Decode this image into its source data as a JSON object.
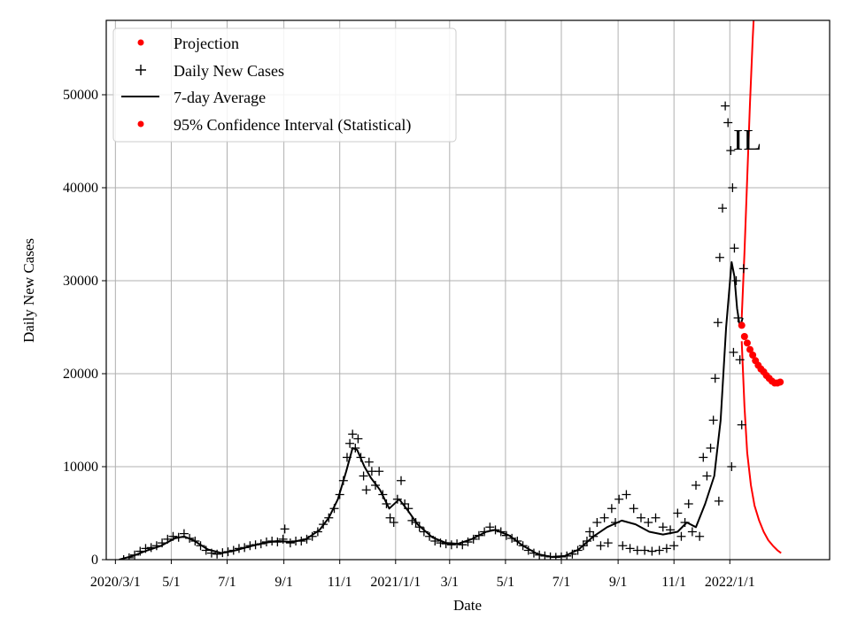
{
  "chart_data": {
    "type": "line",
    "xlabel": "Date",
    "ylabel": "Daily New Cases",
    "annotation": "IL",
    "xlim": [
      "2020-02-20",
      "2022-04-20"
    ],
    "ylim": [
      0,
      58000
    ],
    "grid": true,
    "legend_position": "top-left",
    "x_ticks": [
      {
        "date": "2020-03-01",
        "label": "2020/3/1"
      },
      {
        "date": "2020-05-01",
        "label": "5/1"
      },
      {
        "date": "2020-07-01",
        "label": "7/1"
      },
      {
        "date": "2020-09-01",
        "label": "9/1"
      },
      {
        "date": "2020-11-01",
        "label": "11/1"
      },
      {
        "date": "2021-01-01",
        "label": "2021/1/1"
      },
      {
        "date": "2021-03-01",
        "label": "3/1"
      },
      {
        "date": "2021-05-01",
        "label": "5/1"
      },
      {
        "date": "2021-07-01",
        "label": "7/1"
      },
      {
        "date": "2021-09-01",
        "label": "9/1"
      },
      {
        "date": "2021-11-01",
        "label": "11/1"
      },
      {
        "date": "2022-01-01",
        "label": "2022/1/1"
      }
    ],
    "y_ticks": [
      0,
      10000,
      20000,
      30000,
      40000,
      50000
    ],
    "colors": {
      "projection": "#ff0000",
      "cases": "#000000",
      "average": "#000000",
      "ci": "#ff0000"
    },
    "legend": [
      "Projection",
      "Daily New Cases",
      "7-day Average",
      "95% Confidence Interval (Statistical)"
    ],
    "series": [
      {
        "name": "Daily New Cases",
        "marker": "plus",
        "points": [
          [
            "2020-03-10",
            0
          ],
          [
            "2020-03-16",
            200
          ],
          [
            "2020-03-22",
            500
          ],
          [
            "2020-03-28",
            900
          ],
          [
            "2020-04-03",
            1200
          ],
          [
            "2020-04-09",
            1300
          ],
          [
            "2020-04-15",
            1500
          ],
          [
            "2020-04-21",
            1800
          ],
          [
            "2020-04-27",
            2200
          ],
          [
            "2020-05-03",
            2500
          ],
          [
            "2020-05-09",
            2400
          ],
          [
            "2020-05-15",
            2800
          ],
          [
            "2020-05-21",
            2300
          ],
          [
            "2020-05-27",
            2000
          ],
          [
            "2020-06-02",
            1500
          ],
          [
            "2020-06-08",
            1000
          ],
          [
            "2020-06-14",
            700
          ],
          [
            "2020-06-20",
            600
          ],
          [
            "2020-06-26",
            750
          ],
          [
            "2020-07-02",
            850
          ],
          [
            "2020-07-08",
            1000
          ],
          [
            "2020-07-14",
            1200
          ],
          [
            "2020-07-20",
            1300
          ],
          [
            "2020-07-26",
            1500
          ],
          [
            "2020-08-01",
            1600
          ],
          [
            "2020-08-07",
            1700
          ],
          [
            "2020-08-13",
            1900
          ],
          [
            "2020-08-19",
            2000
          ],
          [
            "2020-08-25",
            1900
          ],
          [
            "2020-08-31",
            2200
          ],
          [
            "2020-09-02",
            3300
          ],
          [
            "2020-09-08",
            1800
          ],
          [
            "2020-09-14",
            2000
          ],
          [
            "2020-09-20",
            2000
          ],
          [
            "2020-09-26",
            2200
          ],
          [
            "2020-10-02",
            2500
          ],
          [
            "2020-10-08",
            3000
          ],
          [
            "2020-10-14",
            3800
          ],
          [
            "2020-10-20",
            4500
          ],
          [
            "2020-10-26",
            5500
          ],
          [
            "2020-11-01",
            7000
          ],
          [
            "2020-11-05",
            8500
          ],
          [
            "2020-11-09",
            11000
          ],
          [
            "2020-11-12",
            12500
          ],
          [
            "2020-11-15",
            13500
          ],
          [
            "2020-11-18",
            12000
          ],
          [
            "2020-11-21",
            13000
          ],
          [
            "2020-11-24",
            11000
          ],
          [
            "2020-11-27",
            9000
          ],
          [
            "2020-11-30",
            7500
          ],
          [
            "2020-12-03",
            10500
          ],
          [
            "2020-12-06",
            9500
          ],
          [
            "2020-12-10",
            8000
          ],
          [
            "2020-12-14",
            9500
          ],
          [
            "2020-12-18",
            7000
          ],
          [
            "2020-12-22",
            6000
          ],
          [
            "2020-12-26",
            4500
          ],
          [
            "2020-12-30",
            4000
          ],
          [
            "2021-01-03",
            6500
          ],
          [
            "2021-01-07",
            8500
          ],
          [
            "2021-01-11",
            6000
          ],
          [
            "2021-01-15",
            5500
          ],
          [
            "2021-01-19",
            4200
          ],
          [
            "2021-01-23",
            4000
          ],
          [
            "2021-01-27",
            3500
          ],
          [
            "2021-02-01",
            3000
          ],
          [
            "2021-02-07",
            2500
          ],
          [
            "2021-02-13",
            2000
          ],
          [
            "2021-02-19",
            1800
          ],
          [
            "2021-02-25",
            1700
          ],
          [
            "2021-03-03",
            1600
          ],
          [
            "2021-03-09",
            1700
          ],
          [
            "2021-03-15",
            1600
          ],
          [
            "2021-03-21",
            1900
          ],
          [
            "2021-03-27",
            2200
          ],
          [
            "2021-04-02",
            2600
          ],
          [
            "2021-04-08",
            3000
          ],
          [
            "2021-04-14",
            3500
          ],
          [
            "2021-04-20",
            3200
          ],
          [
            "2021-04-26",
            3000
          ],
          [
            "2021-05-02",
            2600
          ],
          [
            "2021-05-08",
            2300
          ],
          [
            "2021-05-14",
            2000
          ],
          [
            "2021-05-20",
            1500
          ],
          [
            "2021-05-26",
            1000
          ],
          [
            "2021-06-01",
            700
          ],
          [
            "2021-06-07",
            500
          ],
          [
            "2021-06-13",
            400
          ],
          [
            "2021-06-19",
            300
          ],
          [
            "2021-06-25",
            250
          ],
          [
            "2021-07-01",
            300
          ],
          [
            "2021-07-07",
            400
          ],
          [
            "2021-07-13",
            600
          ],
          [
            "2021-07-19",
            1000
          ],
          [
            "2021-07-25",
            1500
          ],
          [
            "2021-07-29",
            2000
          ],
          [
            "2021-08-01",
            3000
          ],
          [
            "2021-08-05",
            2500
          ],
          [
            "2021-08-09",
            4000
          ],
          [
            "2021-08-13",
            1500
          ],
          [
            "2021-08-17",
            4500
          ],
          [
            "2021-08-21",
            1800
          ],
          [
            "2021-08-25",
            5500
          ],
          [
            "2021-08-29",
            4000
          ],
          [
            "2021-09-02",
            6500
          ],
          [
            "2021-09-06",
            1500
          ],
          [
            "2021-09-10",
            7000
          ],
          [
            "2021-09-14",
            1200
          ],
          [
            "2021-09-18",
            5500
          ],
          [
            "2021-09-22",
            1000
          ],
          [
            "2021-09-26",
            4500
          ],
          [
            "2021-09-30",
            1000
          ],
          [
            "2021-10-04",
            4000
          ],
          [
            "2021-10-08",
            900
          ],
          [
            "2021-10-12",
            4500
          ],
          [
            "2021-10-16",
            1000
          ],
          [
            "2021-10-20",
            3500
          ],
          [
            "2021-10-24",
            1200
          ],
          [
            "2021-10-28",
            3200
          ],
          [
            "2021-11-01",
            1500
          ],
          [
            "2021-11-05",
            5000
          ],
          [
            "2021-11-09",
            2500
          ],
          [
            "2021-11-13",
            4000
          ],
          [
            "2021-11-17",
            6000
          ],
          [
            "2021-11-21",
            3000
          ],
          [
            "2021-11-25",
            8000
          ],
          [
            "2021-11-29",
            2500
          ],
          [
            "2021-12-03",
            11000
          ],
          [
            "2021-12-07",
            9000
          ],
          [
            "2021-12-11",
            12000
          ],
          [
            "2021-12-14",
            15000
          ],
          [
            "2021-12-16",
            19500
          ],
          [
            "2021-12-19",
            25500
          ],
          [
            "2021-12-21",
            32500
          ],
          [
            "2021-12-24",
            37800
          ],
          [
            "2021-12-27",
            48800
          ],
          [
            "2021-12-30",
            47000
          ],
          [
            "2022-01-02",
            44000
          ],
          [
            "2022-01-04",
            40000
          ],
          [
            "2022-01-06",
            33500
          ],
          [
            "2022-01-08",
            30000
          ],
          [
            "2022-01-10",
            26000
          ],
          [
            "2022-01-12",
            21500
          ],
          [
            "2022-01-14",
            14500
          ],
          [
            "2022-01-16",
            31300
          ],
          [
            "2022-01-03",
            10000
          ],
          [
            "2022-01-05",
            22300
          ],
          [
            "2021-12-20",
            6300
          ]
        ]
      },
      {
        "name": "7-day Average",
        "points": [
          [
            "2020-03-05",
            0
          ],
          [
            "2020-03-20",
            400
          ],
          [
            "2020-04-05",
            1000
          ],
          [
            "2020-04-20",
            1500
          ],
          [
            "2020-05-05",
            2300
          ],
          [
            "2020-05-15",
            2500
          ],
          [
            "2020-05-25",
            2100
          ],
          [
            "2020-06-10",
            1100
          ],
          [
            "2020-06-25",
            700
          ],
          [
            "2020-07-10",
            1000
          ],
          [
            "2020-07-25",
            1400
          ],
          [
            "2020-08-10",
            1800
          ],
          [
            "2020-08-25",
            2000
          ],
          [
            "2020-09-10",
            1900
          ],
          [
            "2020-09-25",
            2200
          ],
          [
            "2020-10-10",
            3200
          ],
          [
            "2020-10-20",
            4500
          ],
          [
            "2020-10-30",
            6500
          ],
          [
            "2020-11-08",
            9500
          ],
          [
            "2020-11-15",
            12000
          ],
          [
            "2020-11-20",
            11800
          ],
          [
            "2020-11-28",
            10000
          ],
          [
            "2020-12-05",
            8800
          ],
          [
            "2020-12-15",
            7500
          ],
          [
            "2020-12-25",
            5500
          ],
          [
            "2021-01-05",
            6500
          ],
          [
            "2021-01-15",
            5200
          ],
          [
            "2021-01-25",
            3800
          ],
          [
            "2021-02-10",
            2400
          ],
          [
            "2021-02-25",
            1800
          ],
          [
            "2021-03-10",
            1700
          ],
          [
            "2021-03-25",
            2200
          ],
          [
            "2021-04-10",
            3000
          ],
          [
            "2021-04-20",
            3200
          ],
          [
            "2021-05-05",
            2600
          ],
          [
            "2021-05-20",
            1500
          ],
          [
            "2021-06-05",
            600
          ],
          [
            "2021-06-20",
            300
          ],
          [
            "2021-07-05",
            400
          ],
          [
            "2021-07-20",
            1100
          ],
          [
            "2021-08-05",
            2500
          ],
          [
            "2021-08-20",
            3500
          ],
          [
            "2021-09-05",
            4200
          ],
          [
            "2021-09-20",
            3800
          ],
          [
            "2021-10-05",
            3000
          ],
          [
            "2021-10-20",
            2700
          ],
          [
            "2021-11-05",
            3000
          ],
          [
            "2021-11-15",
            4000
          ],
          [
            "2021-11-25",
            3500
          ],
          [
            "2021-12-05",
            6000
          ],
          [
            "2021-12-15",
            9000
          ],
          [
            "2021-12-22",
            15000
          ],
          [
            "2021-12-28",
            25000
          ],
          [
            "2022-01-03",
            32000
          ],
          [
            "2022-01-06",
            30500
          ],
          [
            "2022-01-09",
            27000
          ],
          [
            "2022-01-12",
            25000
          ],
          [
            "2022-01-15",
            26000
          ]
        ]
      },
      {
        "name": "Projection",
        "marker": "dot",
        "points": [
          [
            "2022-01-14",
            25200
          ],
          [
            "2022-01-17",
            24000
          ],
          [
            "2022-01-20",
            23300
          ],
          [
            "2022-01-23",
            22600
          ],
          [
            "2022-01-26",
            22000
          ],
          [
            "2022-01-29",
            21400
          ],
          [
            "2022-02-01",
            20900
          ],
          [
            "2022-02-04",
            20500
          ],
          [
            "2022-02-07",
            20200
          ],
          [
            "2022-02-10",
            19800
          ],
          [
            "2022-02-13",
            19500
          ],
          [
            "2022-02-16",
            19200
          ],
          [
            "2022-02-19",
            19000
          ],
          [
            "2022-02-22",
            19000
          ],
          [
            "2022-02-25",
            19100
          ]
        ]
      },
      {
        "name": "95% Confidence Interval (Statistical) upper",
        "points": [
          [
            "2022-01-14",
            26000
          ],
          [
            "2022-01-17",
            33000
          ],
          [
            "2022-01-20",
            41000
          ],
          [
            "2022-01-23",
            49000
          ],
          [
            "2022-01-26",
            56000
          ],
          [
            "2022-01-28",
            60000
          ]
        ]
      },
      {
        "name": "95% Confidence Interval (Statistical) lower",
        "points": [
          [
            "2022-01-14",
            23500
          ],
          [
            "2022-01-17",
            16500
          ],
          [
            "2022-01-20",
            11500
          ],
          [
            "2022-01-24",
            8000
          ],
          [
            "2022-01-28",
            5800
          ],
          [
            "2022-02-02",
            4200
          ],
          [
            "2022-02-07",
            3000
          ],
          [
            "2022-02-12",
            2100
          ],
          [
            "2022-02-17",
            1500
          ],
          [
            "2022-02-22",
            1000
          ],
          [
            "2022-02-26",
            700
          ]
        ]
      }
    ]
  }
}
